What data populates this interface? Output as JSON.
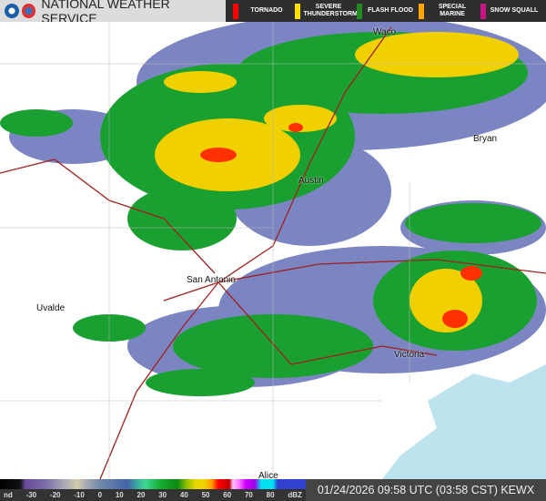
{
  "header": {
    "title": "NATIONAL WEATHER SERVICE",
    "warnings": [
      {
        "label": "TORNADO",
        "color": "#ff0000"
      },
      {
        "label": "SEVERE THUNDERSTORM",
        "color": "#ffe000"
      },
      {
        "label": "FLASH FLOOD",
        "color": "#228b22"
      },
      {
        "label": "SPECIAL MARINE",
        "color": "#ffa500"
      },
      {
        "label": "SNOW SQUALL",
        "color": "#c71585"
      }
    ]
  },
  "map": {
    "cities": [
      {
        "name": "Waco"
      },
      {
        "name": "Bryan"
      },
      {
        "name": "Austin"
      },
      {
        "name": "San Antonio"
      },
      {
        "name": "Uvalde"
      },
      {
        "name": "Victoria"
      },
      {
        "name": "Alice"
      }
    ],
    "water_color": "#bde4ee"
  },
  "legend": {
    "ticks": [
      "nd",
      "-30",
      "-20",
      "-10",
      "0",
      "10",
      "20",
      "30",
      "40",
      "50",
      "60",
      "70",
      "80",
      "dBZ"
    ]
  },
  "timestamp": "01/24/2026 09:58 UTC (03:58 CST) KEWX"
}
